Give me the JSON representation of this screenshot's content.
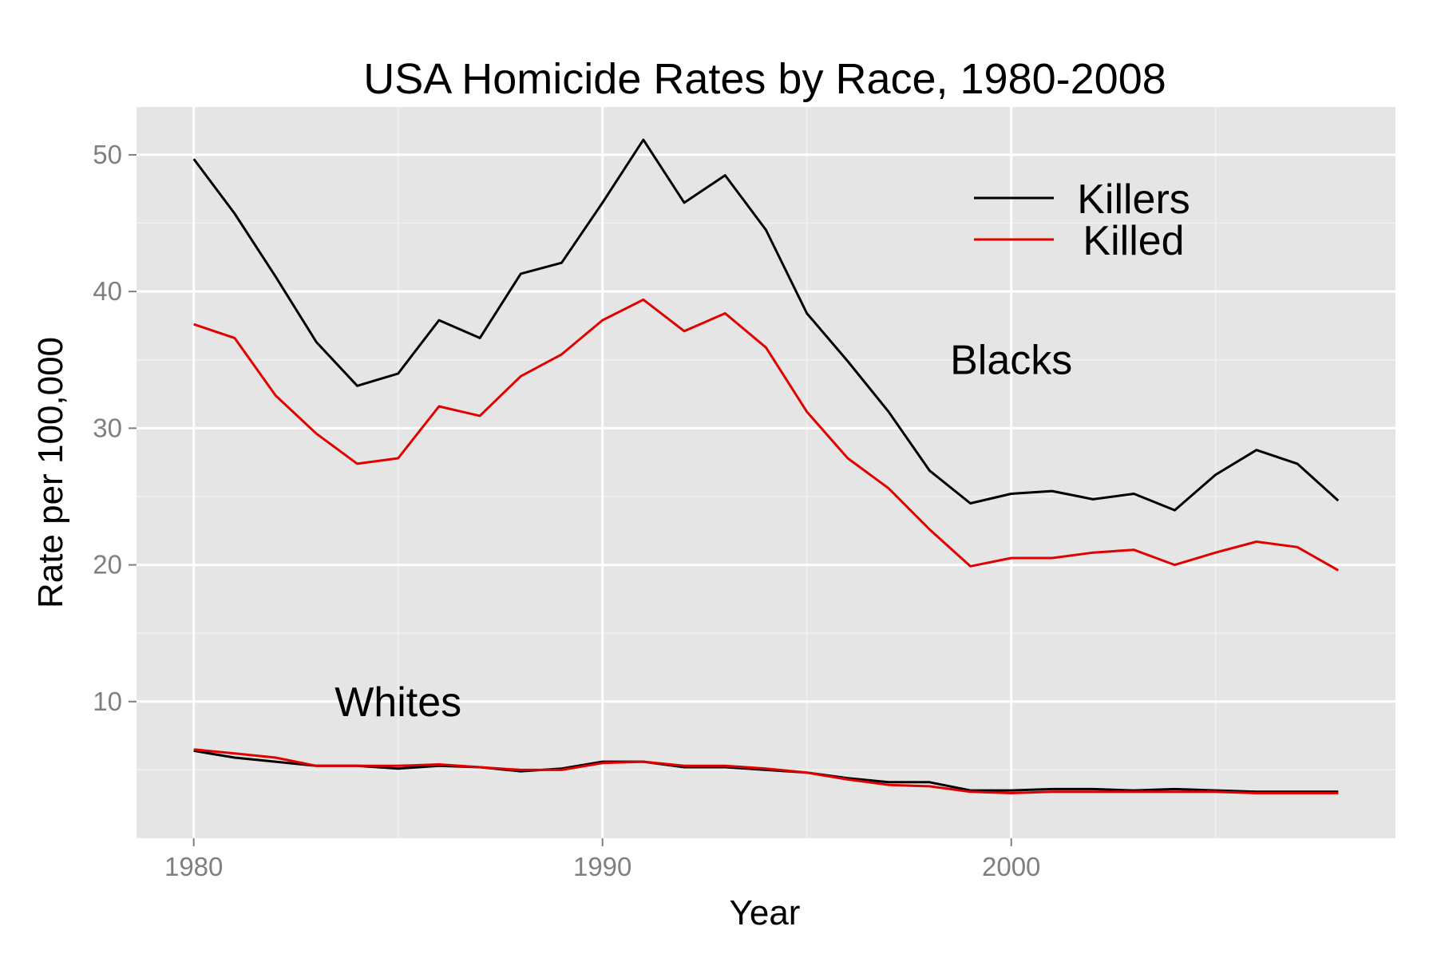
{
  "chart_data": {
    "type": "line",
    "title": "USA Homicide Rates by Race, 1980-2008",
    "xlabel": "Year",
    "ylabel": "Rate per 100,000",
    "xlim": [
      1978.6,
      2009.4
    ],
    "ylim": [
      0,
      53.5
    ],
    "x_ticks": [
      1980,
      1990,
      2000
    ],
    "y_ticks": [
      10,
      20,
      30,
      40,
      50
    ],
    "grid": true,
    "legend_position": "top-right",
    "legend": [
      {
        "name": "Killers",
        "color": "#000000"
      },
      {
        "name": "Killed",
        "color": "#e00000"
      }
    ],
    "annotations": [
      {
        "text": "Blacks",
        "x": 2000,
        "y": 35
      },
      {
        "text": "Whites",
        "x": 1985,
        "y": 10
      }
    ],
    "x": [
      1980,
      1981,
      1982,
      1983,
      1984,
      1985,
      1986,
      1987,
      1988,
      1989,
      1990,
      1991,
      1992,
      1993,
      1994,
      1995,
      1996,
      1997,
      1998,
      1999,
      2000,
      2001,
      2002,
      2003,
      2004,
      2005,
      2006,
      2007,
      2008
    ],
    "series": [
      {
        "name": "Killers",
        "group": "Blacks",
        "color": "#000000",
        "values": [
          49.7,
          45.7,
          41.1,
          36.3,
          33.1,
          34.0,
          37.9,
          36.6,
          41.3,
          42.1,
          46.5,
          51.1,
          46.5,
          48.5,
          44.5,
          38.4,
          34.9,
          31.2,
          26.9,
          24.5,
          25.2,
          25.4,
          24.8,
          25.2,
          24.0,
          26.6,
          28.4,
          27.4,
          24.7
        ]
      },
      {
        "name": "Killed",
        "group": "Blacks",
        "color": "#e00000",
        "values": [
          37.6,
          36.6,
          32.4,
          29.6,
          27.4,
          27.8,
          31.6,
          30.9,
          33.8,
          35.4,
          37.9,
          39.4,
          37.1,
          38.4,
          35.9,
          31.2,
          27.8,
          25.6,
          22.6,
          19.9,
          20.5,
          20.5,
          20.9,
          21.1,
          20.0,
          20.9,
          21.7,
          21.3,
          19.6
        ]
      },
      {
        "name": "Killers",
        "group": "Whites",
        "color": "#000000",
        "values": [
          6.4,
          5.9,
          5.6,
          5.3,
          5.3,
          5.1,
          5.3,
          5.2,
          4.9,
          5.1,
          5.6,
          5.6,
          5.2,
          5.2,
          5.0,
          4.8,
          4.4,
          4.1,
          4.1,
          3.5,
          3.5,
          3.6,
          3.6,
          3.5,
          3.6,
          3.5,
          3.4,
          3.4,
          3.4
        ]
      },
      {
        "name": "Killed",
        "group": "Whites",
        "color": "#e00000",
        "values": [
          6.5,
          6.2,
          5.9,
          5.3,
          5.3,
          5.3,
          5.4,
          5.2,
          5.0,
          5.0,
          5.5,
          5.6,
          5.3,
          5.3,
          5.1,
          4.8,
          4.3,
          3.9,
          3.8,
          3.4,
          3.3,
          3.4,
          3.4,
          3.4,
          3.4,
          3.4,
          3.3,
          3.3,
          3.3
        ]
      }
    ]
  },
  "colors": {
    "panel_background": "#e5e5e5",
    "grid_major": "#ffffff",
    "grid_minor": "#f2f2f2",
    "killers": "#000000",
    "killed": "#e00000"
  }
}
